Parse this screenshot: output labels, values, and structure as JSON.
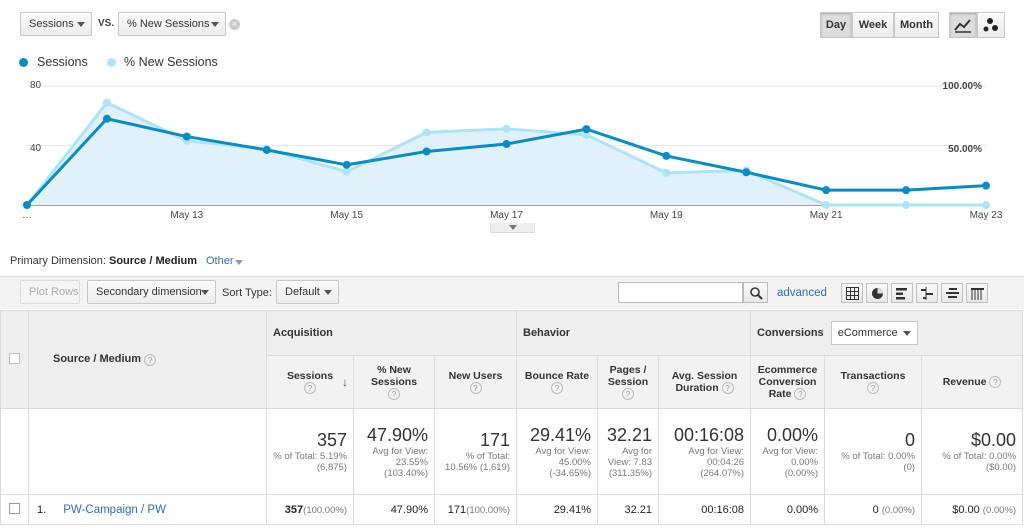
{
  "controls": {
    "metric1": "Sessions",
    "vs_label": "VS.",
    "metric2": "% New Sessions",
    "period_day": "Day",
    "period_week": "Week",
    "period_month": "Month"
  },
  "legend": {
    "series1": "Sessions",
    "series2": "% New Sessions"
  },
  "chart_data": {
    "type": "line",
    "categories": [
      "…",
      "",
      "May 13",
      "",
      "May 15",
      "",
      "May 17",
      "",
      "May 19",
      "",
      "May 21",
      "",
      "May 23"
    ],
    "series": [
      {
        "name": "Sessions",
        "values": [
          0,
          58,
          46,
          37,
          27,
          36,
          41,
          51,
          33,
          22,
          10,
          10,
          13
        ]
      },
      {
        "name": "% New Sessions",
        "values": [
          0,
          86,
          54,
          47,
          28,
          61,
          64,
          59,
          27,
          29,
          0,
          0,
          0
        ]
      }
    ],
    "left_axis_ticks": [
      "80",
      "40"
    ],
    "right_axis_ticks": [
      "100.00%",
      "50.00%"
    ],
    "ylim_left": [
      0,
      80
    ],
    "ylim_right_percent": [
      0,
      100
    ],
    "colors": {
      "series1": "#058dc7",
      "series2": "#aee4f5",
      "area": "#e1f1fa"
    }
  },
  "dimension": {
    "label": "Primary Dimension:",
    "selected": "Source / Medium",
    "other": "Other"
  },
  "toolbar": {
    "plot_rows": "Plot Rows",
    "secondary_dimension": "Secondary dimension",
    "sort_type_label": "Sort Type:",
    "sort_type_value": "Default",
    "search_value": "",
    "advanced": "advanced"
  },
  "table": {
    "source_medium_header": "Source / Medium",
    "groups": {
      "acquisition": "Acquisition",
      "behavior": "Behavior",
      "conversions": "Conversions",
      "conversions_select": "eCommerce"
    },
    "columns": {
      "sessions": "Sessions",
      "new_sessions": "% New Sessions",
      "new_users": "New Users",
      "bounce_rate": "Bounce Rate",
      "pages_session": "Pages / Session",
      "avg_session": "Avg. Session Duration",
      "ecom_rate": "Ecommerce Conversion Rate",
      "transactions": "Transactions",
      "revenue": "Revenue"
    },
    "totals": {
      "sessions": "357",
      "sessions_sub": "% of Total: 5.19% (6,875)",
      "new_sessions": "47.90%",
      "new_sessions_sub": "Avg for View: 23.55% (103.40%)",
      "new_users": "171",
      "new_users_sub": "% of Total: 10.56% (1,619)",
      "bounce_rate": "29.41%",
      "bounce_rate_sub": "Avg for View: 45.00% (-34.65%)",
      "pages_session": "32.21",
      "pages_session_sub": "Avg for View: 7.83 (311.35%)",
      "avg_session": "00:16:08",
      "avg_session_sub": "Avg for View: 00:04:26 (264.07%)",
      "ecom_rate": "0.00%",
      "ecom_rate_sub": "Avg for View: 0.00% (0.00%)",
      "transactions": "0",
      "transactions_sub": "% of Total: 0.00% (0)",
      "revenue": "$0.00",
      "revenue_sub": "% of Total: 0.00% ($0.00)"
    },
    "rows": [
      {
        "index": "1.",
        "source_medium": "PW-Campaign / PW",
        "sessions": "357",
        "sessions_pct": "(100.00%)",
        "new_sessions": "47.90%",
        "new_users": "171",
        "new_users_pct": "(100.00%)",
        "bounce_rate": "29.41%",
        "pages_session": "32.21",
        "avg_session": "00:16:08",
        "ecom_rate": "0.00%",
        "transactions": "0",
        "transactions_pct": "(0.00%)",
        "revenue": "$0.00",
        "revenue_pct": "(0.00%)"
      }
    ]
  }
}
